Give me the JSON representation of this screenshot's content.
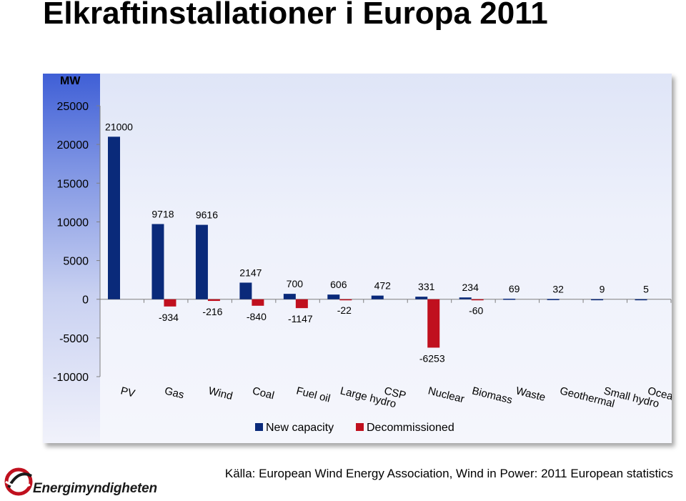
{
  "page": {
    "title": "Elkraftinstallationer i Europa 2011",
    "source": "Källa: European Wind Energy Association, Wind in Power: 2011 European statistics",
    "logo_text": "Energimyndigheten"
  },
  "chart_data": {
    "type": "bar",
    "title": "",
    "xlabel": "",
    "ylabel": "MW",
    "ylim": [
      -10000,
      25000
    ],
    "yticks": [
      25000,
      20000,
      15000,
      10000,
      5000,
      0,
      -5000,
      -10000
    ],
    "categories": [
      "PV",
      "Gas",
      "Wind",
      "Coal",
      "Fuel oil",
      "Large hydro",
      "CSP",
      "Nuclear",
      "Biomass",
      "Waste",
      "Geothermal",
      "Small hydro",
      "Ocean"
    ],
    "series": [
      {
        "name": "New capacity",
        "color": "#0a2a7a",
        "values": [
          21000,
          9718,
          9616,
          2147,
          700,
          606,
          472,
          331,
          234,
          69,
          32,
          9,
          5
        ]
      },
      {
        "name": "Decommissioned",
        "color": "#c0101e",
        "values": [
          null,
          -934,
          -216,
          -840,
          -1147,
          -22,
          null,
          -6253,
          -60,
          null,
          null,
          null,
          null
        ]
      }
    ],
    "grid": false,
    "legend_position": "bottom"
  }
}
